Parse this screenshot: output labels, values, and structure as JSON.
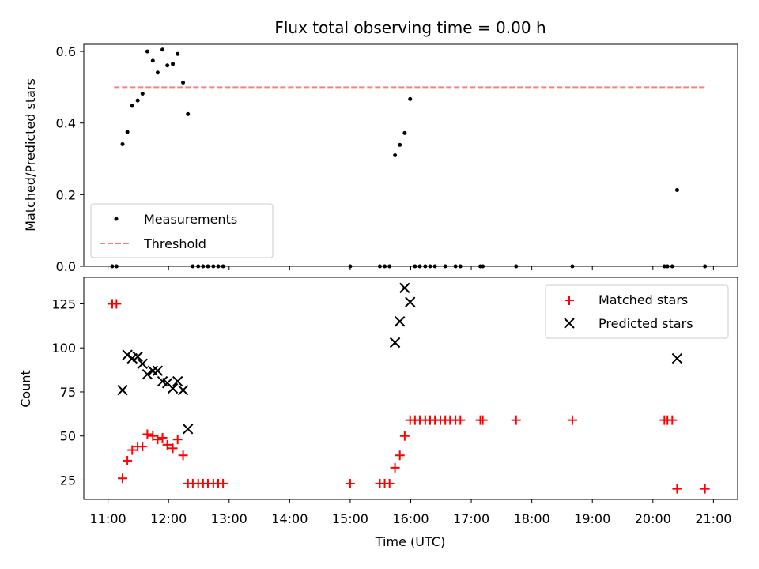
{
  "chart_data": [
    {
      "type": "scatter",
      "title": "Flux total observing time = 0.00 h",
      "xlabel": "",
      "ylabel": "Matched/Predicted stars",
      "x_axis": "time (UTC), decimal hours",
      "xlim": [
        10.6,
        21.4
      ],
      "ylim": [
        0,
        0.62
      ],
      "yticks": [
        0.0,
        0.2,
        0.4,
        0.6
      ],
      "ytick_labels": [
        "0.0",
        "0.2",
        "0.4",
        "0.6"
      ],
      "grid": false,
      "legend_position": "lower-left",
      "series": [
        {
          "name": "Measurements",
          "marker": "dot",
          "color": "#000000",
          "points": [
            [
              11.07,
              0
            ],
            [
              11.14,
              0
            ],
            [
              11.24,
              0.341
            ],
            [
              11.32,
              0.375
            ],
            [
              11.4,
              0.448
            ],
            [
              11.49,
              0.463
            ],
            [
              11.57,
              0.482
            ],
            [
              11.65,
              0.6
            ],
            [
              11.74,
              0.574
            ],
            [
              11.82,
              0.541
            ],
            [
              11.9,
              0.605
            ],
            [
              11.98,
              0.561
            ],
            [
              12.07,
              0.565
            ],
            [
              12.15,
              0.593
            ],
            [
              12.24,
              0.513
            ],
            [
              12.32,
              0.425
            ],
            [
              12.4,
              0
            ],
            [
              12.49,
              0
            ],
            [
              12.57,
              0
            ],
            [
              12.65,
              0
            ],
            [
              12.74,
              0
            ],
            [
              12.82,
              0
            ],
            [
              12.9,
              0
            ],
            [
              15.0,
              0
            ],
            [
              15.49,
              0
            ],
            [
              15.57,
              0
            ],
            [
              15.65,
              0
            ],
            [
              15.74,
              0.31
            ],
            [
              15.82,
              0.339
            ],
            [
              15.9,
              0.372
            ],
            [
              15.99,
              0.467
            ],
            [
              16.07,
              0
            ],
            [
              16.15,
              0
            ],
            [
              16.24,
              0
            ],
            [
              16.32,
              0
            ],
            [
              16.4,
              0
            ],
            [
              16.57,
              0
            ],
            [
              16.74,
              0
            ],
            [
              16.82,
              0
            ],
            [
              17.15,
              0
            ],
            [
              17.19,
              0
            ],
            [
              17.74,
              0
            ],
            [
              18.67,
              0
            ],
            [
              20.19,
              0
            ],
            [
              20.24,
              0
            ],
            [
              20.32,
              0
            ],
            [
              20.4,
              0.213
            ],
            [
              20.86,
              0
            ]
          ]
        },
        {
          "name": "Threshold",
          "style": "dashed-line",
          "color": "#ff7f7f",
          "value": 0.5,
          "x_range": [
            11.1,
            20.86
          ]
        }
      ]
    },
    {
      "type": "scatter",
      "title": "",
      "xlabel": "Time (UTC)",
      "ylabel": "Count",
      "xlim": [
        10.6,
        21.4
      ],
      "ylim": [
        14,
        140
      ],
      "xticks": [
        11,
        12,
        13,
        14,
        15,
        16,
        17,
        18,
        19,
        20,
        21
      ],
      "xtick_labels": [
        "11:00",
        "12:00",
        "13:00",
        "14:00",
        "15:00",
        "16:00",
        "17:00",
        "18:00",
        "19:00",
        "20:00",
        "21:00"
      ],
      "yticks": [
        25,
        50,
        75,
        100,
        125
      ],
      "ytick_labels": [
        "25",
        "50",
        "75",
        "100",
        "125"
      ],
      "grid": false,
      "legend_position": "top-right",
      "series": [
        {
          "name": "Matched stars",
          "marker": "plus",
          "color": "#ff0000",
          "points": [
            [
              11.07,
              125
            ],
            [
              11.14,
              125
            ],
            [
              11.24,
              26
            ],
            [
              11.32,
              36
            ],
            [
              11.4,
              42
            ],
            [
              11.49,
              44
            ],
            [
              11.57,
              44
            ],
            [
              11.65,
              51
            ],
            [
              11.74,
              50
            ],
            [
              11.82,
              48
            ],
            [
              11.9,
              49
            ],
            [
              11.98,
              45
            ],
            [
              12.07,
              43
            ],
            [
              12.15,
              48
            ],
            [
              12.24,
              39
            ],
            [
              12.32,
              23
            ],
            [
              12.4,
              23
            ],
            [
              12.49,
              23
            ],
            [
              12.57,
              23
            ],
            [
              12.65,
              23
            ],
            [
              12.74,
              23
            ],
            [
              12.82,
              23
            ],
            [
              12.9,
              23
            ],
            [
              15.0,
              23
            ],
            [
              15.49,
              23
            ],
            [
              15.57,
              23
            ],
            [
              15.65,
              23
            ],
            [
              15.74,
              32
            ],
            [
              15.82,
              39
            ],
            [
              15.9,
              50
            ],
            [
              15.99,
              59
            ],
            [
              16.07,
              59
            ],
            [
              16.15,
              59
            ],
            [
              16.24,
              59
            ],
            [
              16.32,
              59
            ],
            [
              16.4,
              59
            ],
            [
              16.49,
              59
            ],
            [
              16.57,
              59
            ],
            [
              16.65,
              59
            ],
            [
              16.74,
              59
            ],
            [
              16.82,
              59
            ],
            [
              17.15,
              59
            ],
            [
              17.19,
              59
            ],
            [
              17.74,
              59
            ],
            [
              18.67,
              59
            ],
            [
              20.19,
              59
            ],
            [
              20.24,
              59
            ],
            [
              20.32,
              59
            ],
            [
              20.4,
              20
            ],
            [
              20.86,
              20
            ]
          ]
        },
        {
          "name": "Predicted stars",
          "marker": "x",
          "color": "#000000",
          "points": [
            [
              11.24,
              76
            ],
            [
              11.32,
              96
            ],
            [
              11.4,
              94
            ],
            [
              11.49,
              95
            ],
            [
              11.57,
              91
            ],
            [
              11.65,
              85
            ],
            [
              11.74,
              87
            ],
            [
              11.82,
              87
            ],
            [
              11.9,
              81
            ],
            [
              11.98,
              80
            ],
            [
              12.07,
              77
            ],
            [
              12.15,
              81
            ],
            [
              12.24,
              76
            ],
            [
              12.32,
              54
            ],
            [
              15.74,
              103
            ],
            [
              15.82,
              115
            ],
            [
              15.9,
              134
            ],
            [
              15.99,
              126
            ],
            [
              20.4,
              94
            ]
          ]
        }
      ]
    }
  ]
}
